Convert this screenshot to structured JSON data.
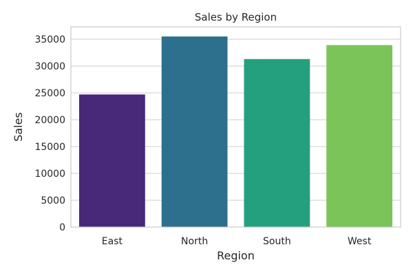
{
  "chart_data": {
    "type": "bar",
    "title": "Sales by Region",
    "xlabel": "Region",
    "ylabel": "Sales",
    "categories": [
      "East",
      "North",
      "South",
      "West"
    ],
    "values": [
      24700,
      35500,
      31300,
      33900
    ],
    "colors": [
      "#482878",
      "#2d708e",
      "#25a07e",
      "#7ac45a"
    ],
    "ylim": [
      0,
      37300
    ],
    "yticks": [
      0,
      5000,
      10000,
      15000,
      20000,
      25000,
      30000,
      35000
    ],
    "grid": true,
    "legend": "none"
  }
}
